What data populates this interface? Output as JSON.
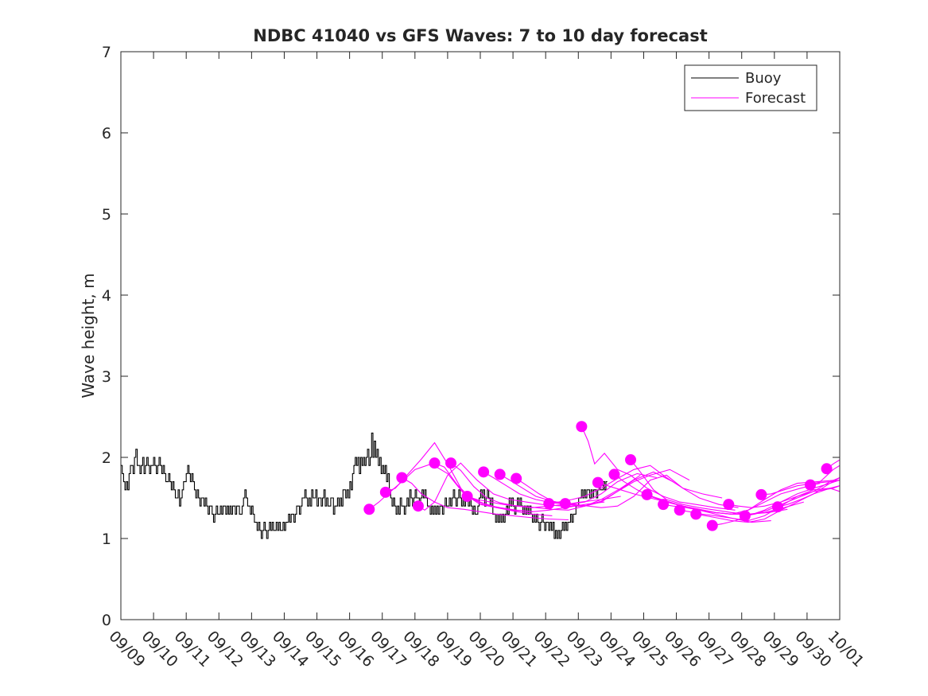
{
  "chart_data": {
    "type": "line",
    "title": "NDBC 41040 vs GFS Waves: 7 to 10 day forecast",
    "xlabel": "",
    "ylabel": "Wave height, m",
    "xlim": [
      0,
      22
    ],
    "ylim": [
      0,
      7
    ],
    "yticks": [
      "0",
      "1",
      "2",
      "3",
      "4",
      "5",
      "6",
      "7"
    ],
    "xticks": [
      "09/09",
      "09/10",
      "09/11",
      "09/12",
      "09/13",
      "09/14",
      "09/15",
      "09/16",
      "09/17",
      "09/18",
      "09/19",
      "09/20",
      "09/21",
      "09/22",
      "09/23",
      "09/24",
      "09/25",
      "09/26",
      "09/27",
      "09/28",
      "09/29",
      "09/30",
      "10/01"
    ],
    "legend": {
      "position": "top-right",
      "entries": [
        "Buoy",
        "Forecast"
      ]
    },
    "colors": {
      "buoy": "#000000",
      "forecast": "#ff00ff",
      "axis": "#262626"
    },
    "series": [
      {
        "name": "Buoy",
        "x_start": 0,
        "x_step": 0.0417,
        "values": [
          1.9,
          1.8,
          1.7,
          1.6,
          1.7,
          1.6,
          1.8,
          1.9,
          1.9,
          1.8,
          2.0,
          2.1,
          1.9,
          1.9,
          1.8,
          1.9,
          2.0,
          1.8,
          1.9,
          2.0,
          1.9,
          1.8,
          1.9,
          1.9,
          2.0,
          1.9,
          1.8,
          1.9,
          2.0,
          1.9,
          1.8,
          1.9,
          1.8,
          1.7,
          1.7,
          1.8,
          1.7,
          1.6,
          1.7,
          1.6,
          1.5,
          1.5,
          1.6,
          1.4,
          1.5,
          1.6,
          1.7,
          1.7,
          1.8,
          1.9,
          1.8,
          1.7,
          1.8,
          1.7,
          1.6,
          1.5,
          1.6,
          1.5,
          1.4,
          1.5,
          1.5,
          1.4,
          1.5,
          1.4,
          1.3,
          1.4,
          1.4,
          1.3,
          1.2,
          1.3,
          1.4,
          1.3,
          1.3,
          1.4,
          1.3,
          1.4,
          1.4,
          1.3,
          1.4,
          1.3,
          1.4,
          1.3,
          1.4,
          1.4,
          1.3,
          1.4,
          1.4,
          1.3,
          1.3,
          1.4,
          1.5,
          1.6,
          1.5,
          1.4,
          1.4,
          1.3,
          1.4,
          1.3,
          1.2,
          1.2,
          1.1,
          1.2,
          1.1,
          1.0,
          1.1,
          1.2,
          1.1,
          1.0,
          1.1,
          1.2,
          1.1,
          1.2,
          1.1,
          1.1,
          1.2,
          1.1,
          1.2,
          1.1,
          1.1,
          1.2,
          1.1,
          1.2,
          1.2,
          1.3,
          1.2,
          1.3,
          1.3,
          1.2,
          1.3,
          1.4,
          1.4,
          1.3,
          1.4,
          1.5,
          1.5,
          1.6,
          1.5,
          1.4,
          1.5,
          1.4,
          1.6,
          1.5,
          1.5,
          1.6,
          1.4,
          1.5,
          1.5,
          1.4,
          1.5,
          1.6,
          1.4,
          1.5,
          1.4,
          1.4,
          1.5,
          1.5,
          1.3,
          1.4,
          1.4,
          1.5,
          1.4,
          1.5,
          1.4,
          1.6,
          1.6,
          1.5,
          1.6,
          1.5,
          1.7,
          1.6,
          1.8,
          1.9,
          2.0,
          1.9,
          2.0,
          1.8,
          2.0,
          1.9,
          2.0,
          1.9,
          2.0,
          2.1,
          1.9,
          2.0,
          2.3,
          2.0,
          2.2,
          2.0,
          2.1,
          1.9,
          2.0,
          1.8,
          1.9,
          1.8,
          1.9,
          1.7,
          1.8,
          1.6,
          1.5,
          1.4,
          1.5,
          1.4,
          1.3,
          1.4,
          1.3,
          1.5,
          1.4,
          1.4,
          1.3,
          1.4,
          1.5,
          1.4,
          1.6,
          1.5,
          1.4,
          1.5,
          1.6,
          1.5,
          1.5,
          1.4,
          1.5,
          1.6,
          1.5,
          1.6,
          1.5,
          1.4,
          1.4,
          1.3,
          1.4,
          1.3,
          1.4,
          1.3,
          1.4,
          1.3,
          1.4,
          1.4,
          1.3,
          1.4,
          1.5,
          1.4,
          1.4,
          1.5,
          1.4,
          1.5,
          1.6,
          1.5,
          1.4,
          1.5,
          1.6,
          1.5,
          1.4,
          1.5,
          1.4,
          1.5,
          1.5,
          1.4,
          1.5,
          1.4,
          1.3,
          1.4,
          1.3,
          1.3,
          1.4,
          1.5,
          1.6,
          1.5,
          1.6,
          1.4,
          1.5,
          1.6,
          1.5,
          1.4,
          1.5,
          1.3,
          1.3,
          1.2,
          1.3,
          1.2,
          1.3,
          1.2,
          1.3,
          1.2,
          1.3,
          1.4,
          1.3,
          1.5,
          1.4,
          1.5,
          1.4,
          1.3,
          1.4,
          1.5,
          1.4,
          1.5,
          1.4,
          1.3,
          1.4,
          1.3,
          1.4,
          1.3,
          1.4,
          1.3,
          1.2,
          1.3,
          1.2,
          1.3,
          1.2,
          1.1,
          1.2,
          1.3,
          1.2,
          1.1,
          1.2,
          1.2,
          1.1,
          1.2,
          1.1,
          1.2,
          1.0,
          1.1,
          1.0,
          1.1,
          1.0,
          1.1,
          1.2,
          1.1,
          1.2,
          1.1,
          1.2,
          1.2,
          1.3,
          1.2,
          1.3,
          1.3,
          1.4,
          1.4,
          1.5,
          1.5,
          1.6,
          1.5,
          1.6,
          1.5,
          1.6,
          1.6,
          1.5,
          1.6,
          1.5,
          1.6,
          1.6,
          1.5,
          1.6,
          1.7,
          1.6,
          1.6,
          1.7,
          1.6,
          1.7
        ]
      },
      {
        "name": "Forecast 1",
        "x": [
          7.6,
          7.9,
          8.2,
          8.6,
          9.0,
          9.5,
          10.0,
          10.5,
          11.0,
          11.5,
          12.0,
          12.6
        ],
        "values": [
          1.36,
          1.45,
          1.56,
          1.7,
          1.85,
          1.92,
          1.8,
          1.55,
          1.42,
          1.38,
          1.35,
          1.33
        ]
      },
      {
        "name": "Forecast 2",
        "x": [
          8.1,
          8.4,
          8.8,
          9.2,
          9.6,
          10.0,
          10.5,
          11.0,
          11.5,
          12.0,
          12.6,
          13.2
        ],
        "values": [
          1.57,
          1.62,
          1.8,
          1.98,
          2.18,
          1.92,
          1.55,
          1.45,
          1.38,
          1.34,
          1.3,
          1.28
        ]
      },
      {
        "name": "Forecast 3",
        "x": [
          8.6,
          8.9,
          9.2,
          9.6,
          10.0,
          10.5,
          11.0,
          11.5,
          12.0,
          12.5,
          13.1,
          13.7
        ],
        "values": [
          1.75,
          1.68,
          1.55,
          1.45,
          1.38,
          1.36,
          1.33,
          1.3,
          1.28,
          1.26,
          1.24,
          1.23
        ]
      },
      {
        "name": "Forecast 4",
        "x": [
          9.1,
          9.3,
          9.6,
          10.0,
          10.4,
          10.9,
          11.4,
          11.9,
          12.4,
          12.9,
          13.5,
          14.1
        ],
        "values": [
          1.4,
          1.35,
          1.45,
          1.78,
          1.93,
          1.72,
          1.55,
          1.48,
          1.45,
          1.42,
          1.4,
          1.4
        ]
      },
      {
        "name": "Forecast 5",
        "x": [
          9.6,
          9.9,
          10.3,
          10.7,
          11.1,
          11.6,
          12.1,
          12.6,
          13.1,
          13.6,
          14.2,
          14.8
        ],
        "values": [
          1.93,
          1.88,
          1.66,
          1.5,
          1.42,
          1.38,
          1.35,
          1.33,
          1.35,
          1.38,
          1.42,
          1.45
        ]
      },
      {
        "name": "Forecast 6",
        "x": [
          10.1,
          10.4,
          10.8,
          11.2,
          11.6,
          12.1,
          12.6,
          13.1,
          13.6,
          14.1,
          14.7,
          15.3
        ],
        "values": [
          1.93,
          1.84,
          1.64,
          1.5,
          1.44,
          1.4,
          1.38,
          1.4,
          1.42,
          1.45,
          1.48,
          1.52
        ]
      },
      {
        "name": "Forecast 7",
        "x": [
          10.6,
          10.9,
          11.3,
          11.7,
          12.2,
          12.7,
          13.2,
          13.7,
          14.2,
          14.7,
          15.3,
          15.9
        ],
        "values": [
          1.52,
          1.48,
          1.45,
          1.42,
          1.4,
          1.38,
          1.36,
          1.35,
          1.4,
          1.48,
          1.62,
          1.78
        ]
      },
      {
        "name": "Forecast 8",
        "x": [
          11.1,
          11.4,
          11.8,
          12.2,
          12.7,
          13.2,
          13.7,
          14.2,
          14.7,
          15.2,
          15.8,
          16.4
        ],
        "values": [
          1.82,
          1.75,
          1.65,
          1.55,
          1.48,
          1.44,
          1.42,
          1.45,
          1.55,
          1.7,
          1.8,
          1.75
        ]
      },
      {
        "name": "Forecast 9",
        "x": [
          11.6,
          11.9,
          12.3,
          12.7,
          13.2,
          13.7,
          14.2,
          14.7,
          15.2,
          15.7,
          16.3,
          16.9
        ],
        "values": [
          1.79,
          1.72,
          1.62,
          1.52,
          1.46,
          1.42,
          1.4,
          1.46,
          1.58,
          1.72,
          1.82,
          1.7
        ]
      },
      {
        "name": "Forecast 10",
        "x": [
          12.1,
          12.4,
          12.8,
          13.2,
          13.7,
          14.2,
          14.7,
          15.2,
          15.7,
          16.2,
          16.8,
          17.4
        ],
        "values": [
          1.74,
          1.66,
          1.55,
          1.46,
          1.42,
          1.4,
          1.45,
          1.58,
          1.7,
          1.78,
          1.85,
          1.72
        ]
      },
      {
        "name": "Forecast 11",
        "x": [
          13.1,
          13.4,
          13.8,
          14.2,
          14.7,
          15.2,
          15.7,
          16.2,
          16.7,
          17.2,
          17.8,
          18.4
        ],
        "values": [
          1.43,
          1.45,
          1.48,
          1.52,
          1.62,
          1.74,
          1.85,
          1.9,
          1.75,
          1.62,
          1.55,
          1.5
        ]
      },
      {
        "name": "Forecast 12",
        "x": [
          13.6,
          13.9,
          14.3,
          14.7,
          15.2,
          15.7,
          16.2,
          16.7,
          17.2,
          17.7,
          18.3,
          18.9
        ],
        "values": [
          1.43,
          1.42,
          1.4,
          1.38,
          1.4,
          1.52,
          1.72,
          1.78,
          1.62,
          1.5,
          1.42,
          1.38
        ]
      },
      {
        "name": "Forecast 13",
        "x": [
          14.1,
          14.3,
          14.5,
          14.8,
          15.2,
          15.6,
          16.1,
          16.6,
          17.1,
          17.6,
          18.2,
          18.8
        ],
        "values": [
          2.38,
          2.2,
          1.92,
          2.05,
          1.85,
          1.78,
          1.62,
          1.52,
          1.45,
          1.42,
          1.38,
          1.35
        ]
      },
      {
        "name": "Forecast 14",
        "x": [
          14.6,
          14.9,
          15.3,
          15.7,
          16.2,
          16.7,
          17.2,
          17.7,
          18.2,
          18.7,
          19.3,
          19.9
        ],
        "values": [
          1.69,
          1.65,
          1.6,
          1.55,
          1.5,
          1.45,
          1.4,
          1.35,
          1.3,
          1.25,
          1.2,
          1.22
        ]
      },
      {
        "name": "Forecast 15",
        "x": [
          15.1,
          15.4,
          15.8,
          16.2,
          16.7,
          17.2,
          17.7,
          18.2,
          18.7,
          19.2,
          19.8,
          20.4
        ],
        "values": [
          1.79,
          1.7,
          1.6,
          1.52,
          1.45,
          1.4,
          1.36,
          1.32,
          1.3,
          1.3,
          1.32,
          1.36
        ]
      },
      {
        "name": "Forecast 16",
        "x": [
          15.6,
          15.9,
          16.3,
          16.7,
          17.2,
          17.7,
          18.2,
          18.7,
          19.2,
          19.7,
          20.3,
          20.9
        ],
        "values": [
          1.97,
          1.82,
          1.6,
          1.48,
          1.42,
          1.38,
          1.35,
          1.32,
          1.3,
          1.32,
          1.38,
          1.45
        ]
      },
      {
        "name": "Forecast 17",
        "x": [
          16.1,
          16.4,
          16.8,
          17.2,
          17.7,
          18.2,
          18.7,
          19.2,
          19.7,
          20.2,
          20.8,
          21.4
        ],
        "values": [
          1.54,
          1.5,
          1.45,
          1.4,
          1.36,
          1.32,
          1.3,
          1.35,
          1.45,
          1.55,
          1.62,
          1.68
        ]
      },
      {
        "name": "Forecast 18",
        "x": [
          16.6,
          16.9,
          17.3,
          17.7,
          18.2,
          18.7,
          19.2,
          19.7,
          20.2,
          20.7,
          21.3,
          21.9
        ],
        "values": [
          1.42,
          1.4,
          1.38,
          1.35,
          1.32,
          1.3,
          1.35,
          1.48,
          1.6,
          1.68,
          1.7,
          1.72
        ]
      },
      {
        "name": "Forecast 19",
        "x": [
          17.1,
          17.4,
          17.8,
          18.2,
          18.7,
          19.2,
          19.7,
          20.2,
          20.7,
          21.2,
          21.8,
          22.0
        ],
        "values": [
          1.35,
          1.33,
          1.3,
          1.28,
          1.25,
          1.22,
          1.28,
          1.4,
          1.52,
          1.58,
          1.62,
          1.65
        ]
      },
      {
        "name": "Forecast 20",
        "x": [
          17.6,
          17.9,
          18.3,
          18.7,
          19.2,
          19.7,
          20.2,
          20.7,
          21.2,
          21.7,
          22.0
        ],
        "values": [
          1.3,
          1.28,
          1.25,
          1.22,
          1.2,
          1.24,
          1.35,
          1.45,
          1.55,
          1.68,
          1.75
        ]
      },
      {
        "name": "Forecast 21",
        "x": [
          18.1,
          18.4,
          18.8,
          19.2,
          19.7,
          20.2,
          20.7,
          21.2,
          21.7,
          22.0
        ],
        "values": [
          1.16,
          1.18,
          1.22,
          1.28,
          1.35,
          1.45,
          1.55,
          1.62,
          1.68,
          1.72
        ]
      },
      {
        "name": "Forecast 22",
        "x": [
          18.6,
          18.9,
          19.3,
          19.7,
          20.2,
          20.7,
          21.2,
          21.7,
          22.0
        ],
        "values": [
          1.42,
          1.4,
          1.38,
          1.4,
          1.45,
          1.52,
          1.6,
          1.62,
          1.58
        ]
      },
      {
        "name": "Forecast 23",
        "x": [
          19.1,
          19.4,
          19.8,
          20.2,
          20.7,
          21.2,
          21.7,
          22.0
        ],
        "values": [
          1.28,
          1.3,
          1.35,
          1.42,
          1.5,
          1.58,
          1.7,
          1.75
        ]
      },
      {
        "name": "Forecast 24",
        "x": [
          19.6,
          19.9,
          20.3,
          20.7,
          21.2,
          21.7,
          22.0
        ],
        "values": [
          1.54,
          1.55,
          1.6,
          1.65,
          1.68,
          1.7,
          1.72
        ]
      },
      {
        "name": "Forecast 25",
        "x": [
          20.1,
          20.4,
          20.8,
          21.2,
          21.7,
          22.0
        ],
        "values": [
          1.39,
          1.42,
          1.48,
          1.55,
          1.62,
          1.65
        ]
      },
      {
        "name": "Forecast 26",
        "x": [
          21.1,
          21.4,
          21.8,
          22.0
        ],
        "values": [
          1.66,
          1.7,
          1.85,
          1.9
        ]
      },
      {
        "name": "Forecast 27",
        "x": [
          21.6,
          21.8,
          22.0
        ],
        "values": [
          1.86,
          1.92,
          1.97
        ]
      }
    ]
  }
}
